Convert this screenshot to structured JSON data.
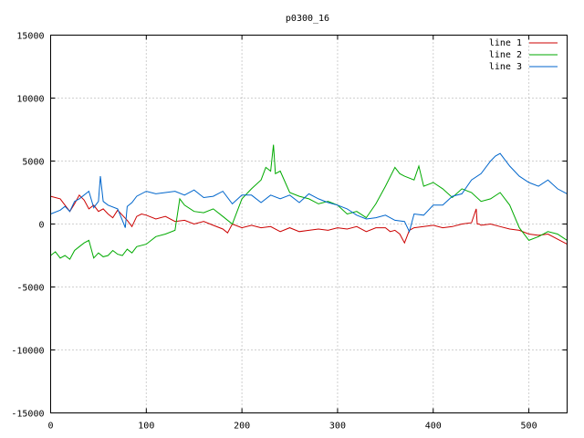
{
  "chart_data": {
    "type": "line",
    "title": "p0300_16",
    "xlabel": "",
    "ylabel": "",
    "xlim": [
      0,
      540
    ],
    "ylim": [
      -15000,
      15000
    ],
    "xticks": [
      0,
      100,
      200,
      300,
      400,
      500
    ],
    "yticks": [
      -15000,
      -10000,
      -5000,
      0,
      5000,
      10000,
      15000
    ],
    "xtick_labels": [
      "0",
      "100",
      "200",
      "300",
      "400",
      "500"
    ],
    "ytick_labels": [
      "-15000",
      "-10000",
      "-5000",
      "0",
      "5000",
      "10000",
      "15000"
    ],
    "grid": true,
    "legend_position": "top-right",
    "series": [
      {
        "name": "line 1",
        "color": "#cc0000",
        "x": [
          0,
          10,
          15,
          20,
          25,
          30,
          35,
          40,
          45,
          50,
          55,
          60,
          65,
          70,
          75,
          80,
          85,
          90,
          95,
          100,
          110,
          120,
          130,
          140,
          150,
          160,
          170,
          180,
          185,
          190,
          200,
          210,
          220,
          230,
          240,
          250,
          260,
          270,
          280,
          290,
          300,
          310,
          320,
          330,
          340,
          350,
          355,
          360,
          365,
          370,
          375,
          380,
          390,
          400,
          410,
          420,
          430,
          440,
          445,
          446,
          448,
          450,
          460,
          470,
          480,
          490,
          500,
          510,
          520,
          530,
          540
        ],
        "y": [
          2200,
          2000,
          1500,
          1000,
          1600,
          2300,
          1900,
          1200,
          1500,
          1000,
          1200,
          800,
          500,
          1100,
          700,
          300,
          -200,
          600,
          800,
          700,
          400,
          600,
          200,
          300,
          0,
          200,
          -100,
          -400,
          -700,
          0,
          -300,
          -100,
          -300,
          -200,
          -600,
          -300,
          -600,
          -500,
          -400,
          -500,
          -300,
          -400,
          -200,
          -600,
          -300,
          -300,
          -600,
          -500,
          -800,
          -1500,
          -500,
          -300,
          -200,
          -100,
          -300,
          -200,
          0,
          100,
          1200,
          0,
          0,
          -100,
          0,
          -200,
          -400,
          -500,
          -800,
          -900,
          -800,
          -1200,
          -1600
        ]
      },
      {
        "name": "line 2",
        "color": "#00aa00",
        "x": [
          0,
          5,
          10,
          15,
          20,
          25,
          30,
          35,
          40,
          45,
          50,
          55,
          60,
          65,
          70,
          75,
          80,
          85,
          90,
          100,
          110,
          120,
          130,
          135,
          140,
          150,
          160,
          170,
          180,
          190,
          200,
          210,
          220,
          225,
          230,
          233,
          235,
          240,
          250,
          260,
          270,
          280,
          290,
          300,
          310,
          320,
          330,
          340,
          350,
          360,
          365,
          370,
          380,
          385,
          390,
          400,
          410,
          420,
          430,
          440,
          450,
          460,
          470,
          480,
          490,
          500,
          510,
          520,
          530,
          540
        ],
        "y": [
          -2500,
          -2200,
          -2700,
          -2500,
          -2800,
          -2100,
          -1800,
          -1500,
          -1300,
          -2700,
          -2300,
          -2600,
          -2500,
          -2100,
          -2400,
          -2500,
          -2000,
          -2300,
          -1800,
          -1600,
          -1000,
          -800,
          -500,
          2000,
          1500,
          1000,
          900,
          1200,
          600,
          0,
          2000,
          2800,
          3500,
          4500,
          4200,
          6300,
          4000,
          4200,
          2500,
          2200,
          2000,
          1600,
          1800,
          1500,
          800,
          1000,
          500,
          1600,
          3000,
          4500,
          4000,
          3800,
          3500,
          4600,
          3000,
          3300,
          2800,
          2100,
          2800,
          2500,
          1800,
          2000,
          2500,
          1500,
          -300,
          -1300,
          -1000,
          -600,
          -800,
          -1300
        ]
      },
      {
        "name": "line 3",
        "color": "#0066cc",
        "x": [
          0,
          10,
          15,
          20,
          25,
          30,
          40,
          45,
          50,
          52,
          55,
          60,
          70,
          75,
          78,
          80,
          85,
          90,
          100,
          110,
          120,
          130,
          140,
          150,
          160,
          170,
          180,
          190,
          200,
          210,
          220,
          230,
          240,
          250,
          260,
          270,
          280,
          290,
          300,
          310,
          320,
          330,
          340,
          350,
          360,
          370,
          375,
          380,
          390,
          400,
          410,
          420,
          430,
          440,
          450,
          460,
          465,
          470,
          480,
          490,
          500,
          510,
          520,
          530,
          540
        ],
        "y": [
          800,
          1100,
          1400,
          1000,
          1800,
          2000,
          2600,
          1300,
          1800,
          3800,
          1800,
          1500,
          1200,
          300,
          -300,
          1400,
          1700,
          2200,
          2600,
          2400,
          2500,
          2600,
          2300,
          2700,
          2100,
          2200,
          2600,
          1600,
          2300,
          2300,
          1700,
          2300,
          2000,
          2300,
          1700,
          2400,
          2000,
          1700,
          1500,
          1200,
          700,
          400,
          500,
          700,
          300,
          200,
          -600,
          800,
          700,
          1500,
          1500,
          2200,
          2400,
          3500,
          4000,
          5000,
          5400,
          5600,
          4600,
          3800,
          3300,
          3000,
          3500,
          2800,
          2400
        ]
      }
    ]
  }
}
